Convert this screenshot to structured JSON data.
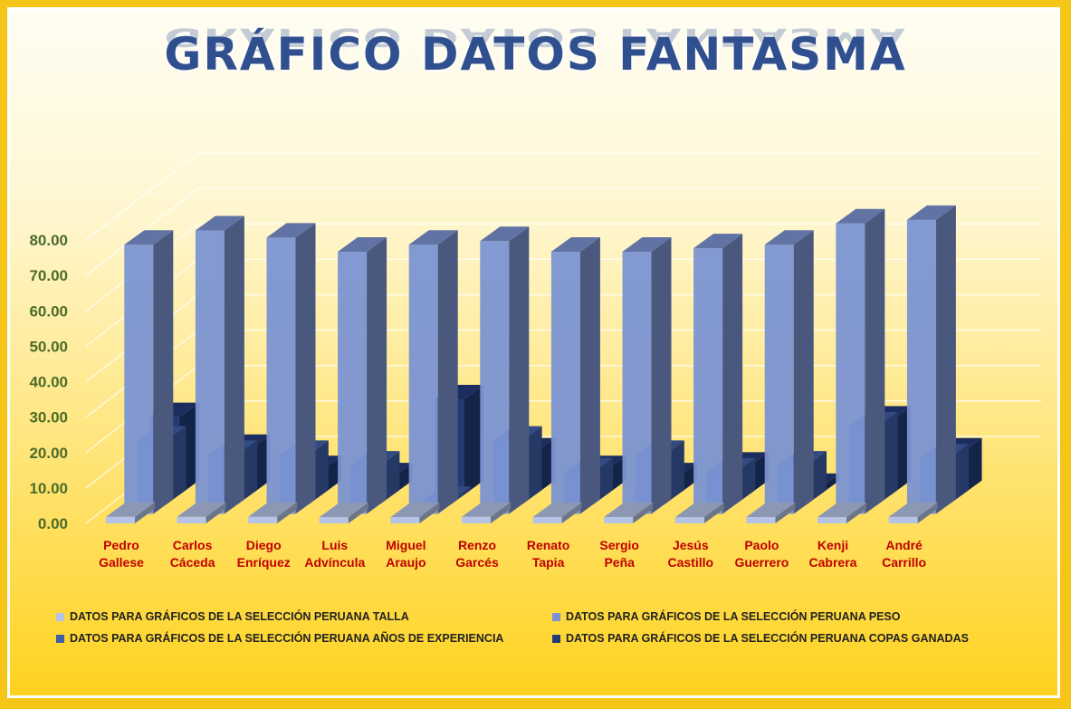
{
  "chart_data": {
    "type": "bar",
    "title": "GRÁFICO DATOS FANTASMA",
    "categories": [
      [
        "Pedro",
        "Gallese"
      ],
      [
        "Carlos",
        "Cáceda"
      ],
      [
        "Diego",
        "Enríquez"
      ],
      [
        "Luis",
        "Advíncula"
      ],
      [
        "Miguel",
        "Araujo"
      ],
      [
        "Renzo",
        "Garcés"
      ],
      [
        "Renato",
        "Tapia"
      ],
      [
        "Sergio",
        "Peña"
      ],
      [
        "Jesús",
        "Castillo"
      ],
      [
        "Paolo",
        "Guerrero"
      ],
      [
        "Kenji",
        "Cabrera"
      ],
      [
        "André",
        "Carrillo"
      ]
    ],
    "ylim": [
      0,
      80
    ],
    "yticks": [
      "0.00",
      "10.00",
      "20.00",
      "30.00",
      "40.00",
      "50.00",
      "60.00",
      "70.00",
      "80.00"
    ],
    "legend_position": "bottom",
    "series": [
      {
        "name": "DATOS PARA GRÁFICOS DE LA SELECCIÓN PERUANA TALLA",
        "color": "#b4c3e6",
        "values": [
          1.86,
          1.84,
          1.9,
          1.75,
          1.8,
          1.85,
          1.78,
          1.78,
          1.77,
          1.78,
          1.75,
          1.81
        ]
      },
      {
        "name": "DATOS PARA GRÁFICOS DE LA SELECCIÓN PERUANA PESO",
        "color": "#7b93d2",
        "values": [
          76,
          80,
          78,
          74,
          76,
          77,
          74,
          74,
          75,
          76,
          82,
          83
        ]
      },
      {
        "name": "DATOS PARA GRÁFICOS DE LA SELECCIÓN PERUANA AÑOS DE EXPERIENCIA",
        "color": "#3f5fa6",
        "values": [
          18,
          14,
          14,
          11,
          1,
          18,
          9,
          14,
          9,
          11,
          22,
          13
        ]
      },
      {
        "name": "DATOS PARA GRÁFICOS DE LA SELECCIÓN PERUANA COPAS GANADAS",
        "color": "#223a78",
        "values": [
          22,
          13,
          7,
          5,
          27,
          12,
          7,
          5,
          8,
          2,
          21,
          12
        ]
      }
    ]
  }
}
